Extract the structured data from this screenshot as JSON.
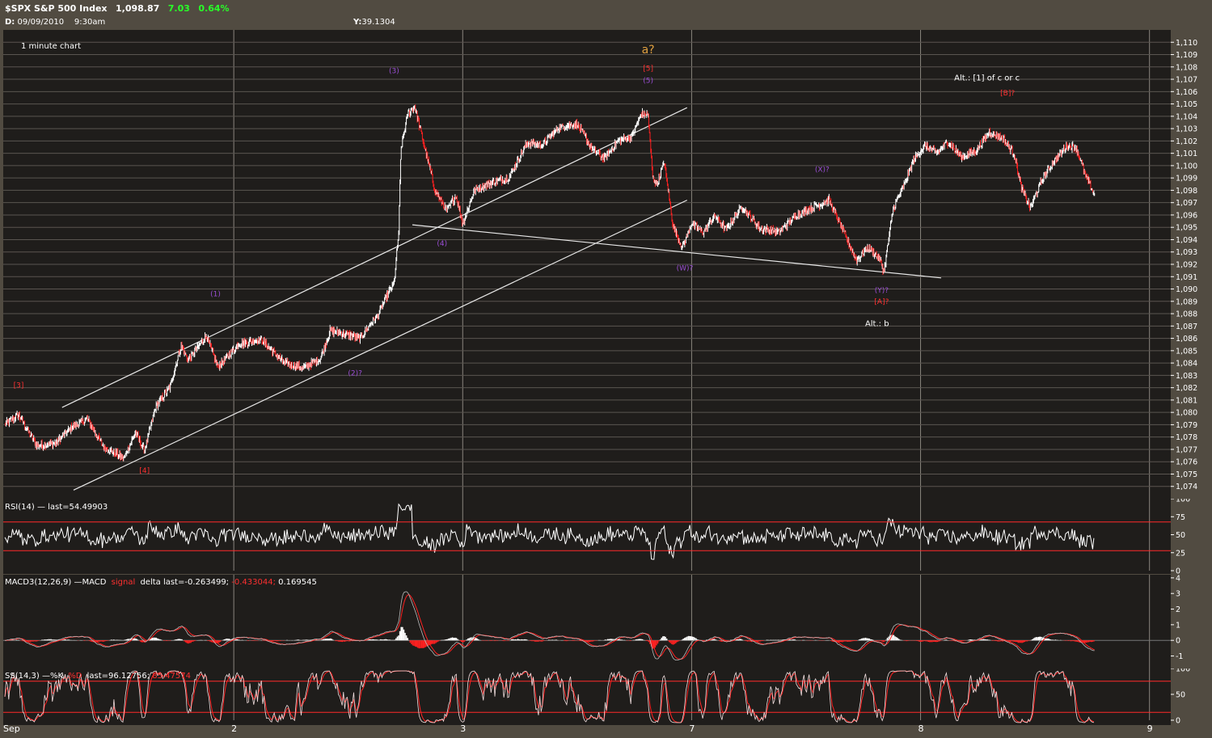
{
  "header": {
    "symbol": "$SPX S&P 500 Index",
    "last": "1,098.87",
    "change": "7.03",
    "change_pct": "0.64%",
    "date_label": "D:",
    "date": "09/09/2010",
    "time": "9:30am",
    "y_readout_label": "Y:",
    "y_readout": "39.1304"
  },
  "colors": {
    "background": "#514b41",
    "panel": "#1f1d1b",
    "grid": "#5a5550",
    "price": "#ffffff",
    "candle_down": "#ff2020",
    "ref_line": "#ff2a2a",
    "label_red": "#ff3030",
    "label_purple": "#9b4ed6",
    "label_orange": "#e0a040",
    "up": "#28ff28"
  },
  "chart_data": [
    {
      "panel": "price",
      "type": "line",
      "title": "1 minute chart",
      "ylim": [
        1073,
        1111
      ],
      "y_ticks": [
        "1,074",
        "1,075",
        "1,076",
        "1,077",
        "1,078",
        "1,079",
        "1,080",
        "1,081",
        "1,082",
        "1,083",
        "1,084",
        "1,085",
        "1,086",
        "1,087",
        "1,088",
        "1,089",
        "1,090",
        "1,091",
        "1,092",
        "1,093",
        "1,094",
        "1,095",
        "1,096",
        "1,097",
        "1,098",
        "1,099",
        "1,100",
        "1,101",
        "1,102",
        "1,103",
        "1,104",
        "1,105",
        "1,106",
        "1,107",
        "1,108",
        "1,109",
        "1,110"
      ],
      "x_ticks": [
        "Sep",
        "2",
        "3",
        "7",
        "8",
        "9"
      ],
      "x_range": [
        0,
        5.1
      ],
      "key_points": [
        [
          0.0,
          1079.0
        ],
        [
          0.06,
          1079.8
        ],
        [
          0.14,
          1077.3
        ],
        [
          0.22,
          1077.5
        ],
        [
          0.3,
          1078.9
        ],
        [
          0.36,
          1079.5
        ],
        [
          0.43,
          1077.2
        ],
        [
          0.52,
          1076.3
        ],
        [
          0.57,
          1078.4
        ],
        [
          0.61,
          1076.9
        ],
        [
          0.66,
          1080.5
        ],
        [
          0.72,
          1082.0
        ],
        [
          0.77,
          1085.4
        ],
        [
          0.8,
          1084.2
        ],
        [
          0.88,
          1086.2
        ],
        [
          0.93,
          1083.7
        ],
        [
          1.02,
          1085.5
        ],
        [
          1.12,
          1085.9
        ],
        [
          1.22,
          1084.0
        ],
        [
          1.31,
          1083.6
        ],
        [
          1.38,
          1084.4
        ],
        [
          1.42,
          1086.6
        ],
        [
          1.48,
          1086.4
        ],
        [
          1.55,
          1086.0
        ],
        [
          1.63,
          1087.9
        ],
        [
          1.67,
          1089.5
        ],
        [
          1.7,
          1090.5
        ],
        [
          1.72,
          1094.5
        ],
        [
          1.73,
          1101.3
        ],
        [
          1.76,
          1104.2
        ],
        [
          1.79,
          1104.8
        ],
        [
          1.84,
          1101.0
        ],
        [
          1.88,
          1098.0
        ],
        [
          1.93,
          1096.3
        ],
        [
          1.97,
          1097.6
        ],
        [
          2.0,
          1095.3
        ],
        [
          2.05,
          1098.0
        ],
        [
          2.12,
          1098.6
        ],
        [
          2.2,
          1099.0
        ],
        [
          2.28,
          1101.8
        ],
        [
          2.35,
          1101.7
        ],
        [
          2.42,
          1103.1
        ],
        [
          2.5,
          1103.4
        ],
        [
          2.57,
          1101.2
        ],
        [
          2.62,
          1100.6
        ],
        [
          2.68,
          1102.0
        ],
        [
          2.74,
          1102.4
        ],
        [
          2.78,
          1104.2
        ],
        [
          2.81,
          1104.1
        ],
        [
          2.83,
          1099.0
        ],
        [
          2.85,
          1098.5
        ],
        [
          2.88,
          1100.3
        ],
        [
          2.92,
          1095.0
        ],
        [
          2.96,
          1093.4
        ],
        [
          3.0,
          1095.3
        ],
        [
          3.05,
          1094.6
        ],
        [
          3.1,
          1095.9
        ],
        [
          3.15,
          1094.8
        ],
        [
          3.22,
          1096.7
        ],
        [
          3.3,
          1094.9
        ],
        [
          3.38,
          1094.6
        ],
        [
          3.46,
          1096.0
        ],
        [
          3.53,
          1096.6
        ],
        [
          3.6,
          1097.2
        ],
        [
          3.66,
          1094.8
        ],
        [
          3.72,
          1092.3
        ],
        [
          3.77,
          1093.4
        ],
        [
          3.82,
          1092.5
        ],
        [
          3.84,
          1091.4
        ],
        [
          3.88,
          1096.5
        ],
        [
          3.93,
          1098.5
        ],
        [
          3.97,
          1100.5
        ],
        [
          4.02,
          1101.6
        ],
        [
          4.07,
          1101.0
        ],
        [
          4.12,
          1101.9
        ],
        [
          4.18,
          1100.7
        ],
        [
          4.24,
          1101.2
        ],
        [
          4.3,
          1102.7
        ],
        [
          4.36,
          1102.2
        ],
        [
          4.41,
          1100.9
        ],
        [
          4.44,
          1098.2
        ],
        [
          4.48,
          1096.6
        ],
        [
          4.53,
          1098.8
        ],
        [
          4.58,
          1100.3
        ],
        [
          4.64,
          1101.6
        ],
        [
          4.68,
          1101.5
        ],
        [
          4.72,
          1099.2
        ],
        [
          4.76,
          1097.6
        ]
      ],
      "lines": [
        {
          "name": "channel upper",
          "from": [
            0.25,
            1080.4
          ],
          "to": [
            2.98,
            1104.7
          ]
        },
        {
          "name": "channel lower",
          "from": [
            0.3,
            1073.7
          ],
          "to": [
            2.98,
            1097.2
          ]
        },
        {
          "name": "lower trendline",
          "from": [
            1.78,
            1095.2
          ],
          "to": [
            4.09,
            1090.9
          ]
        }
      ],
      "annotations": [
        {
          "text": "1 minute chart",
          "x": 0.2,
          "y": 1109.5,
          "color": "white"
        },
        {
          "text": "[3]",
          "x": 0.06,
          "y": 1082.0,
          "color": "red"
        },
        {
          "text": "[4]",
          "x": 0.61,
          "y": 1075.1,
          "color": "red"
        },
        {
          "text": "(1)",
          "x": 0.92,
          "y": 1089.4,
          "color": "purple"
        },
        {
          "text": "(2)?",
          "x": 1.53,
          "y": 1083.0,
          "color": "purple"
        },
        {
          "text": "(3)",
          "x": 1.7,
          "y": 1107.5,
          "color": "purple"
        },
        {
          "text": "(4)",
          "x": 1.91,
          "y": 1093.5,
          "color": "purple"
        },
        {
          "text": "a?",
          "x": 2.81,
          "y": 1109.1,
          "color": "orange"
        },
        {
          "text": "[5]",
          "x": 2.81,
          "y": 1107.7,
          "color": "red"
        },
        {
          "text": "(5)",
          "x": 2.81,
          "y": 1106.7,
          "color": "purple"
        },
        {
          "text": "(W)?",
          "x": 2.97,
          "y": 1091.5,
          "color": "purple"
        },
        {
          "text": "(X)?",
          "x": 3.57,
          "y": 1099.5,
          "color": "purple"
        },
        {
          "text": "(Y)?",
          "x": 3.83,
          "y": 1089.7,
          "color": "purple"
        },
        {
          "text": "[A]?",
          "x": 3.83,
          "y": 1088.8,
          "color": "red"
        },
        {
          "text": "Alt.: b",
          "x": 3.81,
          "y": 1087.0,
          "color": "white"
        },
        {
          "text": "[B]?",
          "x": 4.38,
          "y": 1105.7,
          "color": "red"
        },
        {
          "text": "Alt.: [1] of c or c",
          "x": 4.29,
          "y": 1106.9,
          "color": "white"
        }
      ]
    },
    {
      "panel": "rsi",
      "type": "line",
      "title": "RSI(14) — last=54.49903",
      "ylim": [
        0,
        100
      ],
      "y_ticks": [
        "100",
        "75",
        "50",
        "25",
        "0"
      ],
      "reference_lines": [
        30,
        70
      ],
      "last": 54.49903
    },
    {
      "panel": "macd",
      "type": "line",
      "title_parts": [
        "MACD3(12,26,9) —MACD",
        "signal",
        "delta last=-0.263499;",
        "-0.433044;",
        "0.169545"
      ],
      "ylim": [
        -1.8,
        4.2
      ],
      "y_ticks": [
        "4",
        "3",
        "2",
        "1",
        "0",
        "-1"
      ],
      "last_macd": -0.263499,
      "last_signal": -0.433044,
      "last_delta": 0.169545
    },
    {
      "panel": "stochastic",
      "type": "line",
      "title_parts": [
        "SS(14,3) —%K",
        "%D",
        "last=96.12756;",
        "85.47574"
      ],
      "ylim": [
        0,
        100
      ],
      "y_ticks": [
        "100",
        "50",
        "0"
      ],
      "reference_lines": [
        20,
        80
      ],
      "last_k": 96.12756,
      "last_d": 85.47574
    }
  ]
}
